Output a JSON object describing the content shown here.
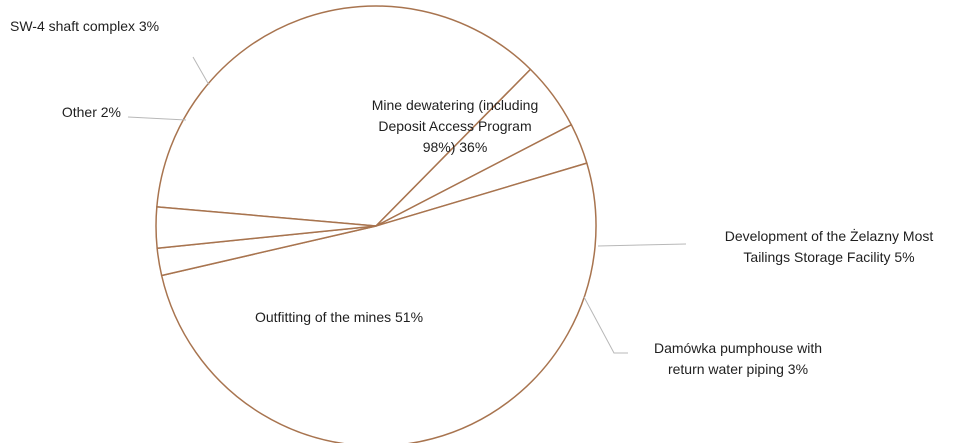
{
  "chart_data": {
    "type": "pie",
    "title": "",
    "slices": [
      {
        "label": "Mine dewatering (including Deposit Access Program 98%)",
        "value": 36,
        "display_lines": [
          "Mine dewatering (including",
          "Deposit Access Program",
          "98%) 36%"
        ]
      },
      {
        "label": "Development of the Żelazny Most Tailings Storage Facility",
        "value": 5,
        "display_lines": [
          "Development of the Żelazny Most",
          "Tailings Storage Facility 5%"
        ]
      },
      {
        "label": "Damówka pumphouse with return water piping",
        "value": 3,
        "display_lines": [
          "Damówka pumphouse with",
          "return water piping 3%"
        ]
      },
      {
        "label": "Outfitting of the mines",
        "value": 51,
        "display_lines": [
          "Outfitting of the mines 51%"
        ]
      },
      {
        "label": "Other",
        "value": 2,
        "display_lines": [
          "Other 2%"
        ]
      },
      {
        "label": "SW-4 shaft complex",
        "value": 3,
        "display_lines": [
          "SW-4 shaft complex 3%"
        ]
      }
    ],
    "legend": "none",
    "colors": {
      "slice_fill": "#ffffff",
      "slice_stroke": "#a8744f",
      "leader_line": "#b8b8b8",
      "text": "#1f1f1f"
    }
  }
}
